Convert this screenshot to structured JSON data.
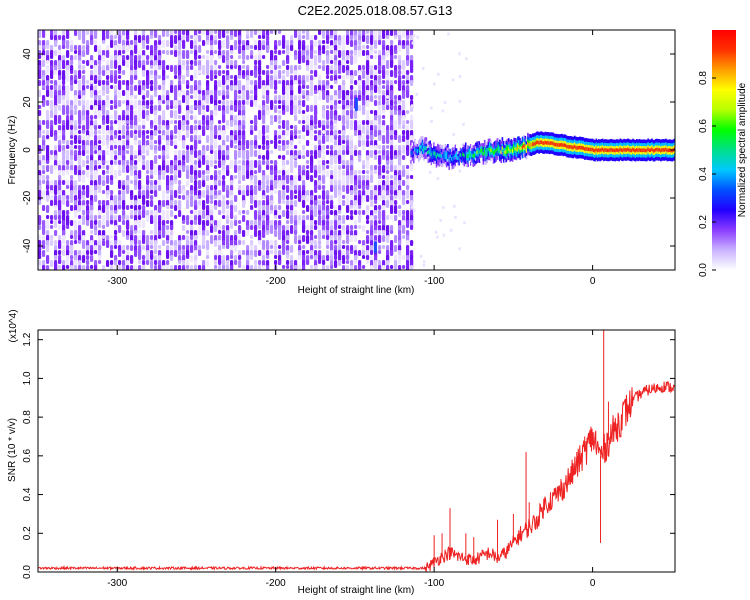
{
  "figure": {
    "title": "C2E2.2025.018.08.57.G13"
  },
  "colorbar": {
    "label": "Normalized spectral amplitude",
    "ticks": [
      "0.0",
      "0.2",
      "0.4",
      "0.6",
      "0.8"
    ],
    "tick_values": [
      0.0,
      0.2,
      0.4,
      0.6,
      0.8
    ],
    "range": [
      0,
      1
    ],
    "colormap": [
      "#ffffff",
      "#c9b3ff",
      "#8b3cff",
      "#2200ff",
      "#0050ff",
      "#00c8ff",
      "#00e08a",
      "#00ff00",
      "#b6ff00",
      "#ffff00",
      "#ffa000",
      "#ff3000",
      "#ff0000"
    ]
  },
  "chart_data": [
    {
      "type": "heatmap",
      "title": "C2E2.2025.018.08.57.G13",
      "xlabel": "Height of straight line (km)",
      "ylabel": "Frequency (Hz)",
      "xlim": [
        -350,
        52
      ],
      "ylim": [
        -50,
        50
      ],
      "x_ticks": [
        "-300",
        "-200",
        "-100",
        "0"
      ],
      "x_tick_values": [
        -300,
        -200,
        -100,
        0
      ],
      "y_ticks": [
        "-40",
        "-20",
        "0",
        "20",
        "40"
      ],
      "y_tick_values": [
        -40,
        -20,
        0,
        20,
        40
      ],
      "grid": false,
      "noise_region_x": [
        -350,
        -115
      ],
      "signal_track": {
        "x": [
          -115,
          -108,
          -100,
          -90,
          -80,
          -70,
          -60,
          -50,
          -40,
          -35,
          -30,
          -20,
          -10,
          0,
          10,
          20,
          30,
          40,
          52
        ],
        "frequency": [
          -1,
          1,
          -2,
          -3,
          -2,
          -1,
          0,
          0,
          2,
          3,
          3,
          2,
          1,
          0,
          0,
          0,
          0,
          0,
          0
        ],
        "amplitude": [
          0.25,
          0.45,
          0.45,
          0.4,
          0.45,
          0.55,
          0.6,
          0.7,
          0.85,
          0.95,
          0.95,
          0.95,
          0.95,
          0.95,
          0.95,
          0.95,
          0.95,
          0.95,
          0.95
        ]
      },
      "line_color": "#ff0000"
    },
    {
      "type": "line",
      "xlabel": "Height of straight line (km)",
      "ylabel": "SNR (10 * v/v)",
      "y_scale_note": "(x10^4)",
      "xlim": [
        -350,
        52
      ],
      "ylim": [
        0,
        1.25
      ],
      "x_ticks": [
        "-300",
        "-200",
        "-100",
        "0"
      ],
      "x_tick_values": [
        -300,
        -200,
        -100,
        0
      ],
      "y_ticks": [
        "0.0",
        "0.2",
        "0.4",
        "0.6",
        "0.8",
        "1.0",
        "1.2"
      ],
      "y_tick_values": [
        0.0,
        0.2,
        0.4,
        0.6,
        0.8,
        1.0,
        1.2
      ],
      "grid": false,
      "series": [
        {
          "color": "#ee2222",
          "x": [
            -350,
            -330,
            -300,
            -250,
            -200,
            -150,
            -120,
            -105,
            -100,
            -95,
            -90,
            -85,
            -80,
            -75,
            -70,
            -65,
            -60,
            -55,
            -50,
            -45,
            -40,
            -35,
            -30,
            -25,
            -20,
            -15,
            -10,
            -5,
            0,
            5,
            10,
            15,
            20,
            25,
            30,
            35,
            40,
            45,
            52
          ],
          "values": [
            0.02,
            0.02,
            0.02,
            0.02,
            0.02,
            0.02,
            0.02,
            0.02,
            0.05,
            0.08,
            0.1,
            0.08,
            0.07,
            0.06,
            0.08,
            0.1,
            0.07,
            0.1,
            0.15,
            0.2,
            0.23,
            0.27,
            0.35,
            0.38,
            0.42,
            0.48,
            0.55,
            0.62,
            0.7,
            0.6,
            0.68,
            0.75,
            0.82,
            0.88,
            0.92,
            0.94,
            0.95,
            0.96,
            0.95
          ]
        }
      ],
      "spikes": {
        "x": [
          -100,
          -95,
          -90,
          -80,
          -75,
          -60,
          -50,
          -42,
          -40,
          -20,
          -10,
          -5,
          2,
          7,
          10
        ],
        "values": [
          0.19,
          0.2,
          0.33,
          0.2,
          0.18,
          0.27,
          0.3,
          0.62,
          0.36,
          0.48,
          0.62,
          0.7,
          0.73,
          1.25,
          0.88
        ]
      }
    }
  ]
}
